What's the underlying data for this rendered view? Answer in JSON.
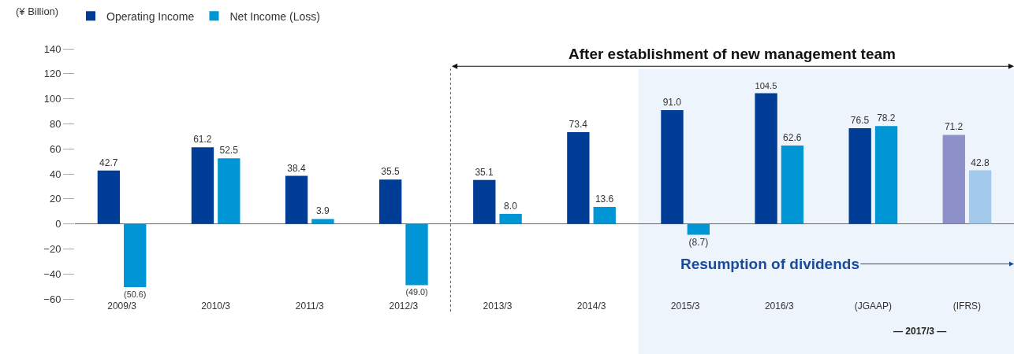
{
  "chart_data": {
    "type": "bar",
    "ylabel": "(¥ Billion)",
    "categories": [
      "2009/3",
      "2010/3",
      "2011/3",
      "2012/3",
      "2013/3",
      "2014/3",
      "2015/3",
      "2016/3",
      "(JGAAP)",
      "(IFRS)"
    ],
    "series": [
      {
        "name": "Operating Income",
        "colors": [
          "#003d96",
          "#003d96",
          "#003d96",
          "#003d96",
          "#003d96",
          "#003d96",
          "#003d96",
          "#003d96",
          "#003d96",
          "#8e90c8"
        ],
        "values": [
          42.7,
          61.2,
          38.4,
          35.5,
          35.1,
          73.4,
          91.0,
          104.5,
          76.5,
          71.2
        ],
        "value_labels": [
          "42.7",
          "61.2",
          "38.4",
          "35.5",
          "35.1",
          "73.4",
          "91.0",
          "104.5",
          "76.5",
          "71.2"
        ]
      },
      {
        "name": "Net Income (Loss)",
        "colors": [
          "#0096d6",
          "#0096d6",
          "#0096d6",
          "#0096d6",
          "#0096d6",
          "#0096d6",
          "#0096d6",
          "#0096d6",
          "#0096d6",
          "#a3c9ec"
        ],
        "values": [
          -50.6,
          52.5,
          3.9,
          -49.0,
          8.0,
          13.6,
          -8.7,
          62.6,
          78.2,
          42.8
        ],
        "value_labels": [
          "(50.6)",
          "52.5",
          "3.9",
          "(49.0)",
          "8.0",
          "13.6",
          "(8.7)",
          "62.6",
          "78.2",
          "42.8"
        ]
      }
    ],
    "ylim": [
      -60,
      140
    ],
    "yticks": [
      {
        "value": -60,
        "label": "−60"
      },
      {
        "value": -40,
        "label": "−40"
      },
      {
        "value": -20,
        "label": "−20"
      },
      0,
      20,
      40,
      60,
      80,
      100,
      120,
      140
    ],
    "grid": false,
    "legend": "top left",
    "ref_lines": [
      {
        "axis": "x",
        "value": "2013/3",
        "line_style": "dotted",
        "color": "#555555"
      }
    ],
    "bands": [
      {
        "axis": "x",
        "from": "2015/3",
        "to": "(IFRS)",
        "color": "#edf4fc",
        "label": "Resumption of dividends"
      }
    ],
    "annotations": [
      "After establishment of new management team",
      "— 2017/3 —"
    ]
  }
}
